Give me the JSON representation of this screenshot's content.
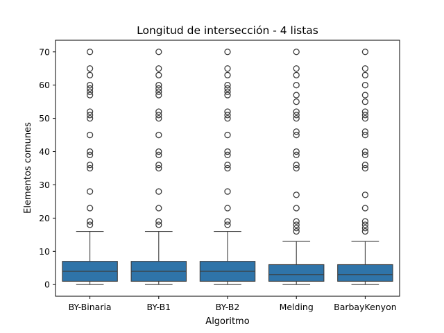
{
  "chart_data": {
    "type": "box",
    "title": "Longitud de intersección - 4 listas",
    "xlabel": "Algoritmo",
    "ylabel": "Elementos comunes",
    "ylim": [
      -3.5,
      73.5
    ],
    "yticks": [
      0,
      10,
      20,
      30,
      40,
      50,
      60,
      70
    ],
    "grid": false,
    "colors": {
      "box_fill": "#2f74a9",
      "line": "#3c3c3c"
    },
    "categories": [
      "BY-Binaria",
      "BY-B1",
      "BY-B2",
      "Melding",
      "BarbayKenyon"
    ],
    "boxes": [
      {
        "name": "BY-Binaria",
        "whisker_low": 0,
        "q1": 1,
        "median": 4,
        "q3": 7,
        "whisker_high": 16,
        "outliers": [
          18,
          19,
          23,
          28,
          35,
          36,
          39,
          40,
          45,
          50,
          51,
          52,
          57,
          58,
          59,
          60,
          63,
          65,
          70
        ]
      },
      {
        "name": "BY-B1",
        "whisker_low": 0,
        "q1": 1,
        "median": 4,
        "q3": 7,
        "whisker_high": 16,
        "outliers": [
          18,
          19,
          23,
          28,
          35,
          36,
          39,
          40,
          45,
          50,
          51,
          52,
          57,
          58,
          59,
          60,
          63,
          65,
          70
        ]
      },
      {
        "name": "BY-B2",
        "whisker_low": 0,
        "q1": 1,
        "median": 4,
        "q3": 7,
        "whisker_high": 16,
        "outliers": [
          18,
          19,
          23,
          28,
          35,
          36,
          39,
          40,
          45,
          50,
          51,
          52,
          57,
          58,
          59,
          60,
          63,
          65,
          70
        ]
      },
      {
        "name": "Melding",
        "whisker_low": 0,
        "q1": 1,
        "median": 3,
        "q3": 6,
        "whisker_high": 13,
        "outliers": [
          16,
          17,
          18,
          19,
          23,
          27,
          35,
          36,
          39,
          40,
          45,
          46,
          50,
          51,
          52,
          55,
          57,
          60,
          63,
          65,
          70
        ]
      },
      {
        "name": "BarbayKenyon",
        "whisker_low": 0,
        "q1": 1,
        "median": 3,
        "q3": 6,
        "whisker_high": 13,
        "outliers": [
          16,
          17,
          18,
          19,
          23,
          27,
          35,
          36,
          39,
          40,
          45,
          46,
          50,
          51,
          52,
          55,
          57,
          60,
          63,
          65,
          70
        ]
      }
    ]
  }
}
